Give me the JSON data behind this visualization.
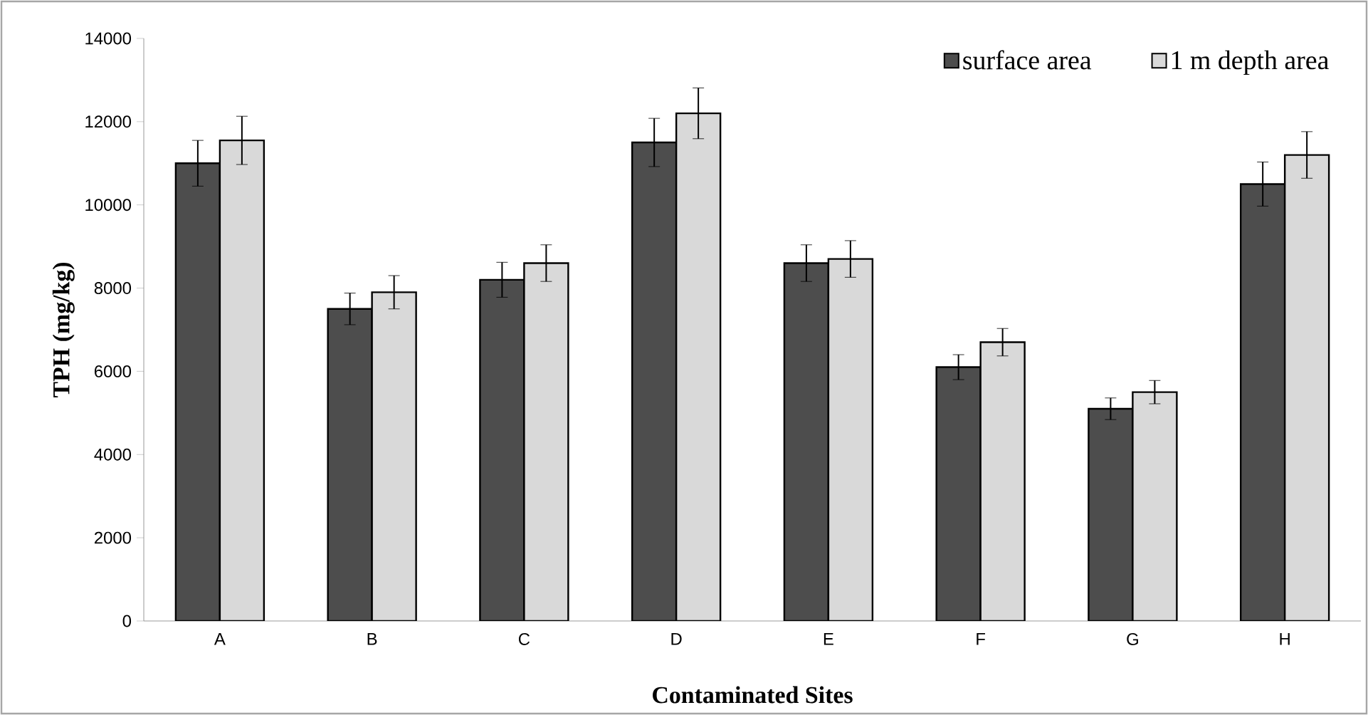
{
  "chart_data": {
    "type": "bar",
    "xlabel": "Contaminated Sites",
    "ylabel": "TPH (mg/kg)",
    "categories": [
      "A",
      "B",
      "C",
      "D",
      "E",
      "F",
      "G",
      "H"
    ],
    "series": [
      {
        "name": "surface area",
        "color": "#4d4d4d",
        "values": [
          11000,
          7500,
          8200,
          11500,
          8600,
          6100,
          5100,
          10500
        ],
        "errors": [
          550,
          380,
          420,
          580,
          440,
          300,
          260,
          530
        ]
      },
      {
        "name": "1 m depth area",
        "color": "#d9d9d9",
        "values": [
          11550,
          7900,
          8600,
          12200,
          8700,
          6700,
          5500,
          11200
        ],
        "errors": [
          580,
          400,
          440,
          610,
          440,
          330,
          280,
          560
        ]
      }
    ],
    "ylim": [
      0,
      14000
    ],
    "yticks": [
      0,
      2000,
      4000,
      6000,
      8000,
      10000,
      12000,
      14000
    ],
    "grid": false,
    "legend": "top right"
  }
}
